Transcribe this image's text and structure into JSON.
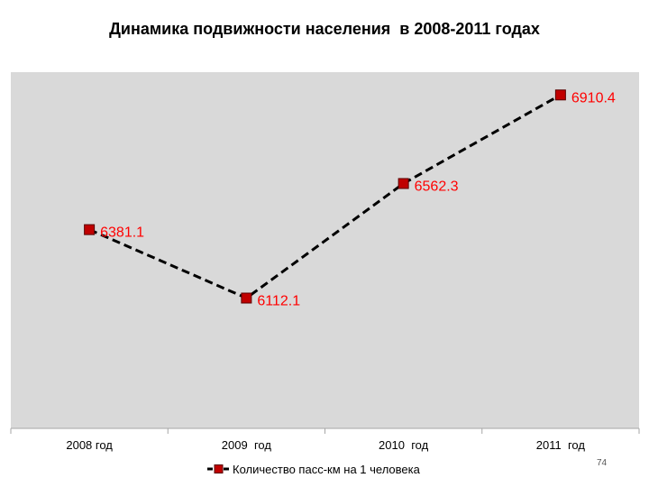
{
  "page_number": "74",
  "colors": {
    "plot_background": "#d9d9d9",
    "line": "#000000",
    "marker": "#c00000",
    "marker_edge": "#5a0000",
    "data_label": "#ff0000"
  },
  "chart_data": {
    "type": "line",
    "title": "Динамика подвижности населения  в 2008-2011 годах",
    "categories": [
      "2008 год",
      "2009  год",
      "2010  год",
      "2011  год"
    ],
    "series": [
      {
        "name": "Количество пасс-км на 1 человека",
        "values": [
          6381.1,
          6112.1,
          6562.3,
          6910.4
        ],
        "labels": [
          "6381.1",
          "6112.1",
          "6562.3",
          "6910.4"
        ],
        "line_style": "dashed",
        "marker": "square"
      }
    ],
    "ylim": [
      5600,
      7000
    ],
    "legend_position": "bottom",
    "grid": false
  }
}
